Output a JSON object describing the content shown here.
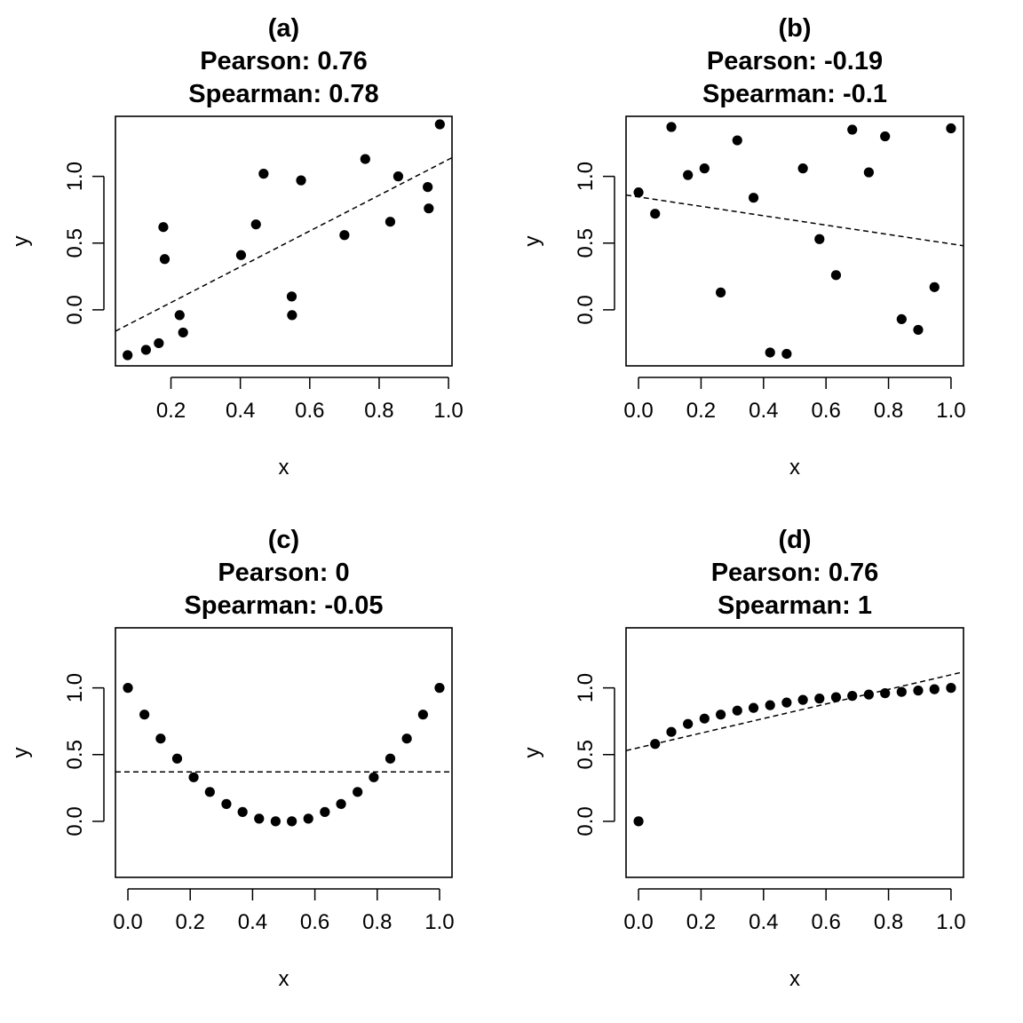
{
  "chart_data": [
    {
      "type": "scatter",
      "title": [
        "(a)",
        "Pearson: 0.76",
        "Spearman: 0.78"
      ],
      "xlabel": "x",
      "ylabel": "y",
      "xlim": [
        0.04,
        1.01
      ],
      "ylim": [
        -0.42,
        1.45
      ],
      "xticks": [
        0.2,
        0.4,
        0.6,
        0.8,
        1.0
      ],
      "xtick_labels": [
        "0.2",
        "0.4",
        "0.6",
        "0.8",
        "1.0"
      ],
      "yticks": [
        0.0,
        0.5,
        1.0
      ],
      "ytick_labels": [
        "0.0",
        "0.5",
        "1.0"
      ],
      "grid": false,
      "points": [
        [
          0.075,
          -0.34
        ],
        [
          0.128,
          -0.3
        ],
        [
          0.165,
          -0.25
        ],
        [
          0.178,
          0.62
        ],
        [
          0.182,
          0.38
        ],
        [
          0.225,
          -0.04
        ],
        [
          0.235,
          -0.17
        ],
        [
          0.402,
          0.41
        ],
        [
          0.445,
          0.64
        ],
        [
          0.467,
          1.02
        ],
        [
          0.548,
          0.1
        ],
        [
          0.549,
          -0.04
        ],
        [
          0.575,
          0.97
        ],
        [
          0.7,
          0.56
        ],
        [
          0.76,
          1.13
        ],
        [
          0.832,
          0.66
        ],
        [
          0.855,
          1.0
        ],
        [
          0.94,
          0.92
        ],
        [
          0.943,
          0.76
        ],
        [
          0.975,
          1.39
        ]
      ],
      "fit_line": [
        [
          0.04,
          -0.16
        ],
        [
          1.01,
          1.14
        ]
      ]
    },
    {
      "type": "scatter",
      "title": [
        "(b)",
        "Pearson: -0.19",
        "Spearman: -0.1"
      ],
      "xlabel": "x",
      "ylabel": "y",
      "xlim": [
        -0.04,
        1.04
      ],
      "ylim": [
        -0.42,
        1.45
      ],
      "xticks": [
        0.0,
        0.2,
        0.4,
        0.6,
        0.8,
        1.0
      ],
      "xtick_labels": [
        "0.0",
        "0.2",
        "0.4",
        "0.6",
        "0.8",
        "1.0"
      ],
      "yticks": [
        0.0,
        0.5,
        1.0
      ],
      "ytick_labels": [
        "0.0",
        "0.5",
        "1.0"
      ],
      "grid": false,
      "points": [
        [
          0.0,
          0.88
        ],
        [
          0.053,
          0.72
        ],
        [
          0.105,
          1.37
        ],
        [
          0.158,
          1.01
        ],
        [
          0.211,
          1.06
        ],
        [
          0.263,
          0.13
        ],
        [
          0.316,
          1.27
        ],
        [
          0.368,
          0.84
        ],
        [
          0.421,
          -0.32
        ],
        [
          0.474,
          -0.33
        ],
        [
          0.526,
          1.06
        ],
        [
          0.579,
          0.53
        ],
        [
          0.632,
          0.26
        ],
        [
          0.684,
          1.35
        ],
        [
          0.737,
          1.03
        ],
        [
          0.789,
          1.3
        ],
        [
          0.842,
          -0.07
        ],
        [
          0.895,
          -0.15
        ],
        [
          0.947,
          0.17
        ],
        [
          1.0,
          1.36
        ]
      ],
      "fit_line": [
        [
          -0.04,
          0.86
        ],
        [
          1.04,
          0.48
        ]
      ]
    },
    {
      "type": "scatter",
      "title": [
        "(c)",
        "Pearson: 0",
        "Spearman: -0.05"
      ],
      "xlabel": "x",
      "ylabel": "y",
      "xlim": [
        -0.04,
        1.04
      ],
      "ylim": [
        -0.42,
        1.45
      ],
      "xticks": [
        0.0,
        0.2,
        0.4,
        0.6,
        0.8,
        1.0
      ],
      "xtick_labels": [
        "0.0",
        "0.2",
        "0.4",
        "0.6",
        "0.8",
        "1.0"
      ],
      "yticks": [
        0.0,
        0.5,
        1.0
      ],
      "ytick_labels": [
        "0.0",
        "0.5",
        "1.0"
      ],
      "grid": false,
      "points": [
        [
          0.0,
          1.0
        ],
        [
          0.053,
          0.8
        ],
        [
          0.105,
          0.62
        ],
        [
          0.158,
          0.47
        ],
        [
          0.211,
          0.33
        ],
        [
          0.263,
          0.22
        ],
        [
          0.316,
          0.13
        ],
        [
          0.368,
          0.07
        ],
        [
          0.421,
          0.02
        ],
        [
          0.474,
          0.0
        ],
        [
          0.526,
          0.0
        ],
        [
          0.579,
          0.02
        ],
        [
          0.632,
          0.07
        ],
        [
          0.684,
          0.13
        ],
        [
          0.737,
          0.22
        ],
        [
          0.789,
          0.33
        ],
        [
          0.842,
          0.47
        ],
        [
          0.895,
          0.62
        ],
        [
          0.947,
          0.8
        ],
        [
          1.0,
          1.0
        ]
      ],
      "fit_line": [
        [
          -0.04,
          0.37
        ],
        [
          1.04,
          0.37
        ]
      ]
    },
    {
      "type": "scatter",
      "title": [
        "(d)",
        "Pearson: 0.76",
        "Spearman: 1"
      ],
      "xlabel": "x",
      "ylabel": "y",
      "xlim": [
        -0.04,
        1.04
      ],
      "ylim": [
        -0.42,
        1.45
      ],
      "xticks": [
        0.0,
        0.2,
        0.4,
        0.6,
        0.8,
        1.0
      ],
      "xtick_labels": [
        "0.0",
        "0.2",
        "0.4",
        "0.6",
        "0.8",
        "1.0"
      ],
      "yticks": [
        0.0,
        0.5,
        1.0
      ],
      "ytick_labels": [
        "0.0",
        "0.5",
        "1.0"
      ],
      "grid": false,
      "points": [
        [
          0.0,
          0.0
        ],
        [
          0.053,
          0.58
        ],
        [
          0.105,
          0.67
        ],
        [
          0.158,
          0.73
        ],
        [
          0.211,
          0.77
        ],
        [
          0.263,
          0.8
        ],
        [
          0.316,
          0.83
        ],
        [
          0.368,
          0.85
        ],
        [
          0.421,
          0.87
        ],
        [
          0.474,
          0.89
        ],
        [
          0.526,
          0.91
        ],
        [
          0.579,
          0.92
        ],
        [
          0.632,
          0.93
        ],
        [
          0.684,
          0.94
        ],
        [
          0.737,
          0.95
        ],
        [
          0.789,
          0.96
        ],
        [
          0.842,
          0.97
        ],
        [
          0.895,
          0.98
        ],
        [
          0.947,
          0.99
        ],
        [
          1.0,
          1.0
        ]
      ],
      "fit_line": [
        [
          -0.04,
          0.53
        ],
        [
          1.04,
          1.12
        ]
      ]
    }
  ]
}
